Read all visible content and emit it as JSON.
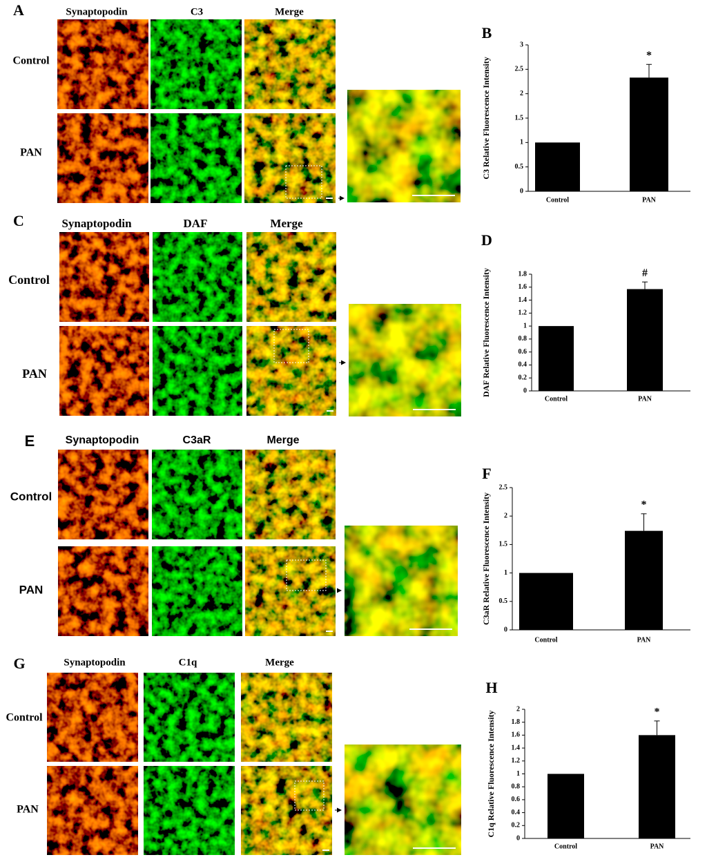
{
  "panels": [
    {
      "letter": "A",
      "columns": [
        "Synaptopodin",
        "C3",
        "Merge"
      ],
      "rows": [
        "Control",
        "PAN"
      ]
    },
    {
      "letter": "C",
      "columns": [
        "Synaptopodin",
        "DAF",
        "Merge"
      ],
      "rows": [
        "Control",
        "PAN"
      ]
    },
    {
      "letter": "E",
      "columns": [
        "Synaptopodin",
        "C3aR",
        "Merge"
      ],
      "rows": [
        "Control",
        "PAN"
      ]
    },
    {
      "letter": "G",
      "columns": [
        "Synaptopodin",
        "C1q",
        "Merge"
      ],
      "rows": [
        "Control",
        "PAN"
      ]
    }
  ],
  "chart_data": [
    {
      "type": "bar",
      "letter": "B",
      "ylabel": "C3 Relative  Fluorescence Intensity",
      "categories": [
        "Control",
        "PAN"
      ],
      "values": [
        1,
        2.33
      ],
      "errors": [
        null,
        0.27
      ],
      "annotations": [
        null,
        "*"
      ],
      "color": "#000000",
      "ylim": [
        0,
        3
      ],
      "yticks": [
        0,
        0.5,
        1,
        1.5,
        2,
        2.5,
        3
      ]
    },
    {
      "type": "bar",
      "letter": "D",
      "ylabel": "DAF Relative  Fluorescence Intensity",
      "categories": [
        "Control",
        "PAN"
      ],
      "values": [
        1,
        1.57
      ],
      "errors": [
        null,
        0.11
      ],
      "annotations": [
        null,
        "#"
      ],
      "color": "#000000",
      "ylim": [
        0,
        1.8
      ],
      "yticks": [
        0,
        0.2,
        0.4,
        0.6,
        0.8,
        1,
        1.2,
        1.4,
        1.6,
        1.8
      ]
    },
    {
      "type": "bar",
      "letter": "F",
      "ylabel": "C3aR Relative  Fluorescence Intensity",
      "categories": [
        "Control",
        "PAN"
      ],
      "values": [
        1,
        1.74
      ],
      "errors": [
        null,
        0.3
      ],
      "annotations": [
        null,
        "*"
      ],
      "color": "#000000",
      "ylim": [
        0,
        2.5
      ],
      "yticks": [
        0,
        0.5,
        1,
        1.5,
        2,
        2.5
      ]
    },
    {
      "type": "bar",
      "letter": "H",
      "ylabel": "C1q Relative  Fluorescence Intensity",
      "categories": [
        "Control",
        "PAN"
      ],
      "values": [
        1,
        1.6
      ],
      "errors": [
        null,
        0.22
      ],
      "annotations": [
        null,
        "*"
      ],
      "color": "#000000",
      "ylim": [
        0,
        2
      ],
      "yticks": [
        0,
        0.2,
        0.4,
        0.6,
        0.8,
        1,
        1.2,
        1.4,
        1.6,
        1.8,
        2
      ]
    }
  ]
}
